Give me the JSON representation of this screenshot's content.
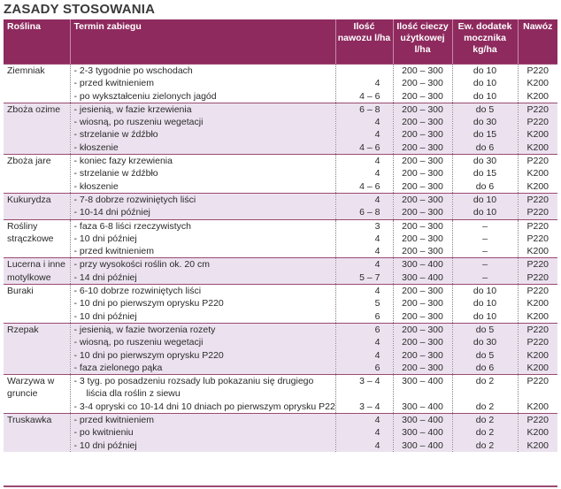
{
  "title": "ZASADY STOSOWANIA",
  "headers": {
    "plant": "Roślina",
    "term": "Termin zabiegu",
    "dose": "Ilość nawozu l/ha",
    "liquid": "Ilość cieczy użytkowej l/ha",
    "additive": "Ew. dodatek mocznika kg/ha",
    "nozzle": "Nawóz"
  },
  "groups": [
    {
      "plant": "Ziemniak",
      "shaded": false,
      "rows": [
        {
          "term": "- 2-3 tygodnie po wschodach",
          "dose": "",
          "liquid": "200 – 300",
          "additive": "do 10",
          "product": "P220"
        },
        {
          "term": "- przed kwitnieniem",
          "dose": "4",
          "liquid": "200 – 300",
          "additive": "do 10",
          "product": "K200"
        },
        {
          "term": "- po wykształceniu zielonych jagód",
          "dose": "4 – 6",
          "liquid": "200 – 300",
          "additive": "do 10",
          "product": "K200"
        }
      ]
    },
    {
      "plant": "Zboża ozime",
      "shaded": true,
      "rows": [
        {
          "term": "- jesienią, w fazie krzewienia",
          "dose": "6 – 8",
          "liquid": "200 – 300",
          "additive": "do 5",
          "product": "P220"
        },
        {
          "term": "- wiosną, po ruszeniu wegetacji",
          "dose": "4",
          "liquid": "200 – 300",
          "additive": "do 30",
          "product": "P220"
        },
        {
          "term": "- strzelanie w źdźbło",
          "dose": "4",
          "liquid": "200 – 300",
          "additive": "do 15",
          "product": "K200"
        },
        {
          "term": "- kłoszenie",
          "dose": "4 – 6",
          "liquid": "200 – 300",
          "additive": "do 6",
          "product": "K200"
        }
      ]
    },
    {
      "plant": "Zboża jare",
      "shaded": false,
      "rows": [
        {
          "term": "- koniec fazy krzewienia",
          "dose": "4",
          "liquid": "200 – 300",
          "additive": "do 30",
          "product": "P220"
        },
        {
          "term": "- strzelanie w źdźbło",
          "dose": "4",
          "liquid": "200 – 300",
          "additive": "do 15",
          "product": "K200"
        },
        {
          "term": "- kłoszenie",
          "dose": "4 – 6",
          "liquid": "200 – 300",
          "additive": "do 6",
          "product": "K200"
        }
      ]
    },
    {
      "plant": "Kukurydza",
      "shaded": true,
      "rows": [
        {
          "term": "- 7-8 dobrze rozwiniętych liści",
          "dose": "4",
          "liquid": "200 – 300",
          "additive": "do 10",
          "product": "P220"
        },
        {
          "term": "- 10-14 dni później",
          "dose": "6 – 8",
          "liquid": "200 – 300",
          "additive": "do 10",
          "product": "P220"
        }
      ]
    },
    {
      "plant": "Rośliny strączkowe",
      "shaded": false,
      "rows": [
        {
          "term": "- faza 6-8 liści rzeczywistych",
          "dose": "3",
          "liquid": "200 – 300",
          "additive": "–",
          "product": "P220"
        },
        {
          "term": "- 10 dni później",
          "dose": "4",
          "liquid": "200 – 300",
          "additive": "–",
          "product": "P220"
        },
        {
          "term": "- przed kwitnieniem",
          "dose": "4",
          "liquid": "200 – 300",
          "additive": "–",
          "product": "K200"
        }
      ]
    },
    {
      "plant": "Lucerna i inne motylkowe",
      "shaded": true,
      "rows": [
        {
          "term": "- przy wysokości roślin ok. 20 cm",
          "dose": "4",
          "liquid": "300 – 400",
          "additive": "–",
          "product": "P220"
        },
        {
          "term": "- 14 dni później",
          "dose": "5 – 7",
          "liquid": "300 – 400",
          "additive": "–",
          "product": "P220"
        }
      ]
    },
    {
      "plant": "Buraki",
      "shaded": false,
      "rows": [
        {
          "term": "- 6-10 dobrze rozwiniętych liści",
          "dose": "4",
          "liquid": "200 – 300",
          "additive": "do 10",
          "product": "P220"
        },
        {
          "term": "- 10 dni po pierwszym oprysku P220",
          "dose": "5",
          "liquid": "200 – 300",
          "additive": "do 10",
          "product": "K200"
        },
        {
          "term": "- 10 dni później",
          "dose": "6",
          "liquid": "200 – 300",
          "additive": "do 10",
          "product": "K200"
        }
      ]
    },
    {
      "plant": "Rzepak",
      "shaded": true,
      "rows": [
        {
          "term": "- jesienią, w fazie tworzenia rozety",
          "dose": "6",
          "liquid": "200 – 300",
          "additive": "do 5",
          "product": "P220"
        },
        {
          "term": "- wiosną, po ruszeniu wegetacji",
          "dose": "4",
          "liquid": "200 – 300",
          "additive": "do 30",
          "product": "P220"
        },
        {
          "term": "- 10 dni po pierwszym oprysku P220",
          "dose": "4",
          "liquid": "200 – 300",
          "additive": "do 5",
          "product": "K200"
        },
        {
          "term": "- faza zielonego pąka",
          "dose": "6",
          "liquid": "200 – 300",
          "additive": "do 6",
          "product": "K200"
        }
      ]
    },
    {
      "plant": "Warzywa w gruncie",
      "shaded": false,
      "rows": [
        {
          "term": "- 3 tyg. po posadzeniu rozsady lub pokazaniu się drugiego",
          "dose": "3 – 4",
          "liquid": "300 – 400",
          "additive": "do 2",
          "product": "P220"
        },
        {
          "term": "liścia dla roślin z siewu",
          "dose": "",
          "liquid": "",
          "additive": "",
          "product": "",
          "indent": true
        },
        {
          "term": "- 3-4 opryski co 10-14 dni 10 dniach po pierwszym oprysku P220",
          "dose": "3 – 4",
          "liquid": "300 – 400",
          "additive": "do 2",
          "product": "K200"
        }
      ]
    },
    {
      "plant": "Truskawka",
      "shaded": true,
      "rows": [
        {
          "term": "- przed kwitnieniem",
          "dose": "4",
          "liquid": "300 – 400",
          "additive": "do 2",
          "product": "P220"
        },
        {
          "term": "- po kwitnieniu",
          "dose": "4",
          "liquid": "300 – 400",
          "additive": "do 2",
          "product": "K200"
        },
        {
          "term": "- 10 dni później",
          "dose": "4",
          "liquid": "300 – 400",
          "additive": "do 2",
          "product": "K200"
        }
      ]
    }
  ]
}
